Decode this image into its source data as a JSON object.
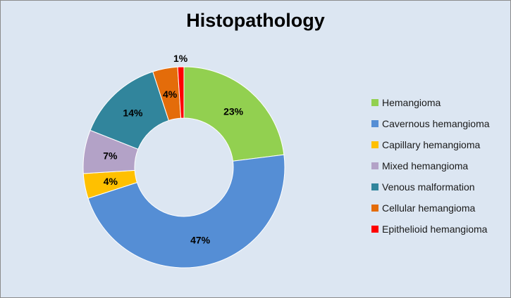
{
  "chart_data": {
    "type": "pie",
    "title": "Histopathology",
    "donut": true,
    "legend_position": "right",
    "slices": [
      {
        "label": "Hemangioma",
        "value": 23,
        "display": "23%",
        "color": "#92d050"
      },
      {
        "label": "Cavernous hemangioma",
        "value": 47,
        "display": "47%",
        "color": "#558ed5"
      },
      {
        "label": "Capillary hemangioma",
        "value": 4,
        "display": "4%",
        "color": "#ffc000"
      },
      {
        "label": "Mixed hemangioma",
        "value": 7,
        "display": "7%",
        "color": "#b3a2c7"
      },
      {
        "label": "Venous malformation",
        "value": 14,
        "display": "14%",
        "color": "#31859c"
      },
      {
        "label": "Cellular hemangioma",
        "value": 4,
        "display": "4%",
        "color": "#e46c0a"
      },
      {
        "label": "Epithelioid hemangioma",
        "value": 1,
        "display": "1%",
        "color": "#ff0000"
      }
    ]
  }
}
